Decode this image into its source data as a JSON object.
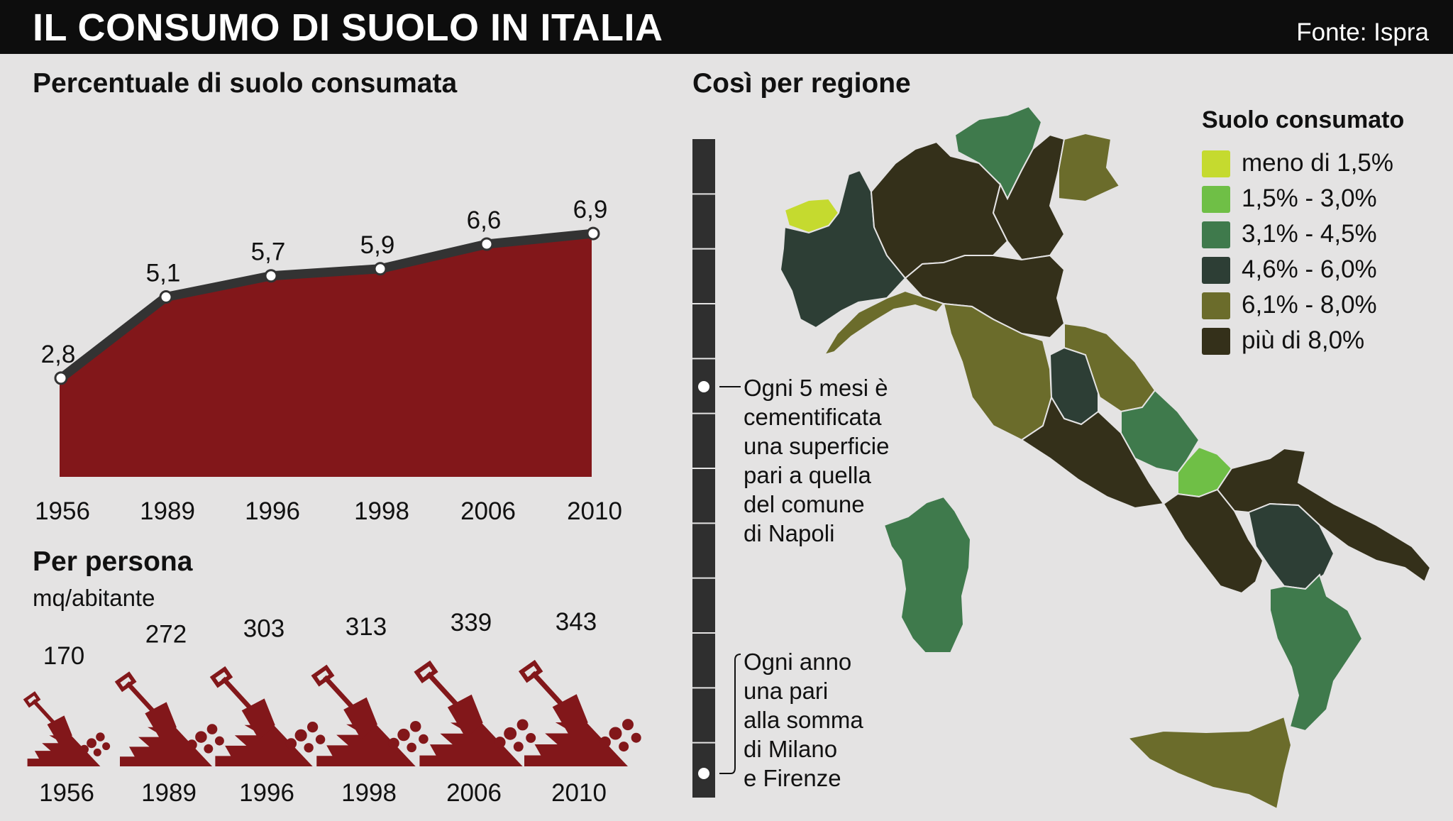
{
  "header": {
    "title": "IL CONSUMO DI SUOLO IN ITALIA",
    "source": "Fonte: Ispra"
  },
  "colors": {
    "area_fill": "#82171a",
    "line": "#333333",
    "header_bg": "#0d0d0d",
    "background": "#e4e3e3"
  },
  "chart_data": [
    {
      "type": "area",
      "title": "Percentuale di suolo consumata",
      "categories": [
        "1956",
        "1989",
        "1996",
        "1998",
        "2006",
        "2010"
      ],
      "values": [
        2.8,
        5.1,
        5.7,
        5.9,
        6.6,
        6.9
      ],
      "value_labels": [
        "2,8",
        "5,1",
        "5,7",
        "5,9",
        "6,6",
        "6,9"
      ]
    },
    {
      "type": "pictogram",
      "title": "Per persona",
      "subtitle": "mq/abitante",
      "categories": [
        "1956",
        "1989",
        "1996",
        "1998",
        "2006",
        "2010"
      ],
      "values": [
        170,
        272,
        303,
        313,
        339,
        343
      ],
      "value_labels": [
        "170",
        "272",
        "303",
        "313",
        "339",
        "343"
      ],
      "icon": "shovel-and-soil-icon"
    }
  ],
  "map": {
    "title": "Così per regione",
    "legend": {
      "title": "Suolo consumato",
      "items": [
        {
          "label": "meno di 1,5%",
          "color": "#c5da2f"
        },
        {
          "label": "1,5% - 3,0%",
          "color": "#6fbf46"
        },
        {
          "label": "3,1% - 4,5%",
          "color": "#3f7a4c"
        },
        {
          "label": "4,6% - 6,0%",
          "color": "#2d3e35"
        },
        {
          "label": "6,1% - 8,0%",
          "color": "#6b6c2b"
        },
        {
          "label": "più di 8,0%",
          "color": "#34301a"
        }
      ]
    }
  },
  "timeline": {
    "note1": [
      "Ogni 5 mesi è",
      "cementificata",
      "una superficie",
      "pari a quella",
      "del comune",
      "di Napoli"
    ],
    "note2": [
      "Ogni anno",
      "una pari",
      "alla somma",
      "di Milano",
      "e Firenze"
    ]
  }
}
